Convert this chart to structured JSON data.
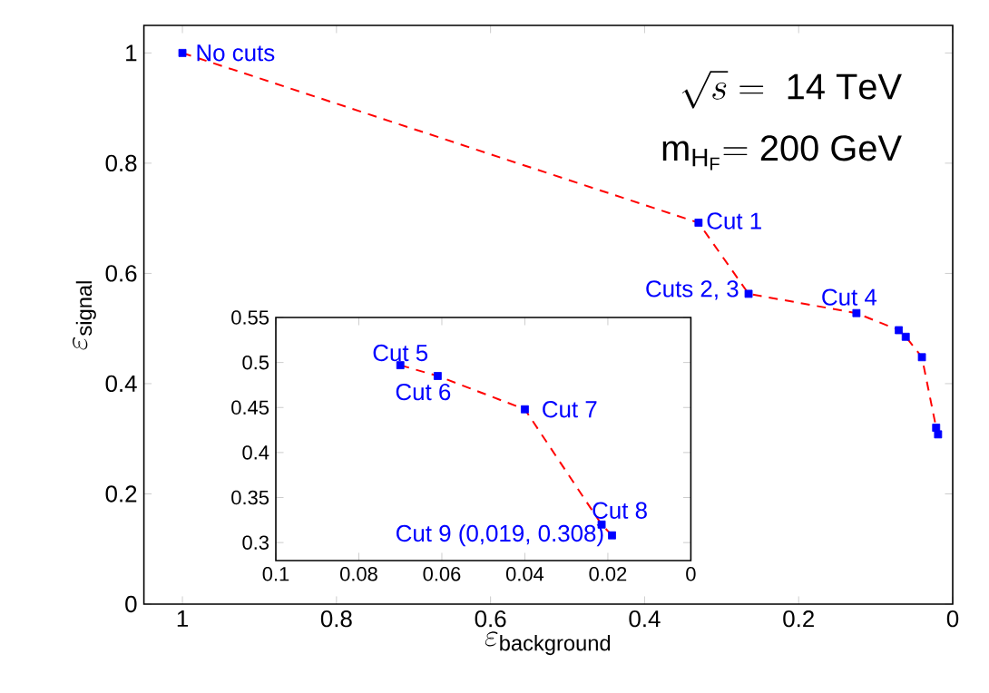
{
  "chart_data": [
    {
      "type": "line",
      "xlabel": "\\varepsilon_{\\mathrm{background}}",
      "ylabel": "\\varepsilon_{\\mathrm{signal}}",
      "xlim": [
        1.05,
        0
      ],
      "ylim": [
        0,
        1.05
      ],
      "xticks": [
        1,
        0.8,
        0.6,
        0.4,
        0.2,
        0
      ],
      "yticks": [
        0,
        0.2,
        0.4,
        0.6,
        0.8,
        1
      ],
      "series": [
        {
          "color": "#ff0000",
          "line_style": "dashed",
          "marker": "none",
          "x": [
            1,
            0.33,
            0.265,
            0.125,
            0.07,
            0.061,
            0.04,
            0.0215,
            0.019
          ],
          "values": [
            1,
            0.692,
            0.563,
            0.528,
            0.497,
            0.485,
            0.448,
            0.32,
            0.308
          ]
        },
        {
          "type": "scatter",
          "color": "#0000ff",
          "marker": "square",
          "x": [
            1,
            0.33,
            0.265,
            0.125,
            0.07,
            0.061,
            0.04,
            0.0215,
            0.019
          ],
          "values": [
            1,
            0.692,
            0.563,
            0.528,
            0.497,
            0.485,
            0.448,
            0.32,
            0.308
          ]
        }
      ],
      "annotations": [
        {
          "text": "No cuts",
          "x": 1,
          "y": 1
        },
        {
          "text": "Cut 1",
          "x": 0.33,
          "y": 0.692
        },
        {
          "text": "Cuts 2, 3",
          "x": 0.265,
          "y": 0.563
        },
        {
          "text": "Cut 4",
          "x": 0.125,
          "y": 0.528
        },
        "\\sqrt{s}\\mathrm{\\ =\\ 14\\ TeV}",
        "\\mathrm{m}_{\\mathrm{H}_{\\mathrm{F}}}\\mathrm{=200\\ GeV}"
      ]
    },
    {
      "type": "line",
      "xlim": [
        0.1,
        0
      ],
      "ylim": [
        0.28,
        0.55
      ],
      "xticks": [
        0.1,
        0.08,
        0.06,
        0.04,
        0.02,
        0
      ],
      "yticks": [
        0.3,
        0.35,
        0.4,
        0.45,
        0.5,
        0.55
      ],
      "series": [
        {
          "color": "#ff0000",
          "line_style": "dashed",
          "marker": "none",
          "x": [
            0.07,
            0.061,
            0.04,
            0.0215,
            0.019
          ],
          "values": [
            0.497,
            0.485,
            0.448,
            0.32,
            0.308
          ]
        },
        {
          "type": "scatter",
          "color": "#0000ff",
          "marker": "square",
          "x": [
            0.07,
            0.061,
            0.04,
            0.0215,
            0.019
          ],
          "values": [
            0.497,
            0.485,
            0.448,
            0.32,
            0.308
          ]
        }
      ],
      "annotations": [
        {
          "text": "Cut 5",
          "x": 0.07,
          "y": 0.497
        },
        {
          "text": "Cut 6",
          "x": 0.061,
          "y": 0.485
        },
        {
          "text": "Cut 7",
          "x": 0.04,
          "y": 0.448
        },
        {
          "text": "Cut 8",
          "x": 0.0215,
          "y": 0.32
        },
        {
          "text": "Cut 9 (0,019, 0.308)",
          "x": 0.019,
          "y": 0.308
        }
      ]
    }
  ]
}
